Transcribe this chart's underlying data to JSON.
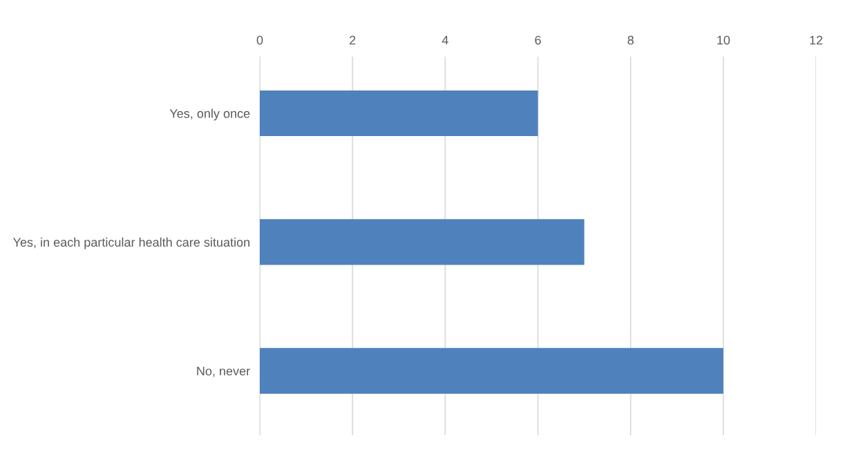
{
  "chart_data": {
    "type": "bar",
    "orientation": "horizontal",
    "categories": [
      "Yes, only once",
      "Yes, in each particular health care situation",
      "No, never"
    ],
    "values": [
      6,
      7,
      10
    ],
    "color": "#4f81bd",
    "xlim": [
      0,
      12
    ],
    "xticks": [
      0,
      2,
      4,
      6,
      8,
      10,
      12
    ],
    "grid": "x",
    "legend": false
  }
}
